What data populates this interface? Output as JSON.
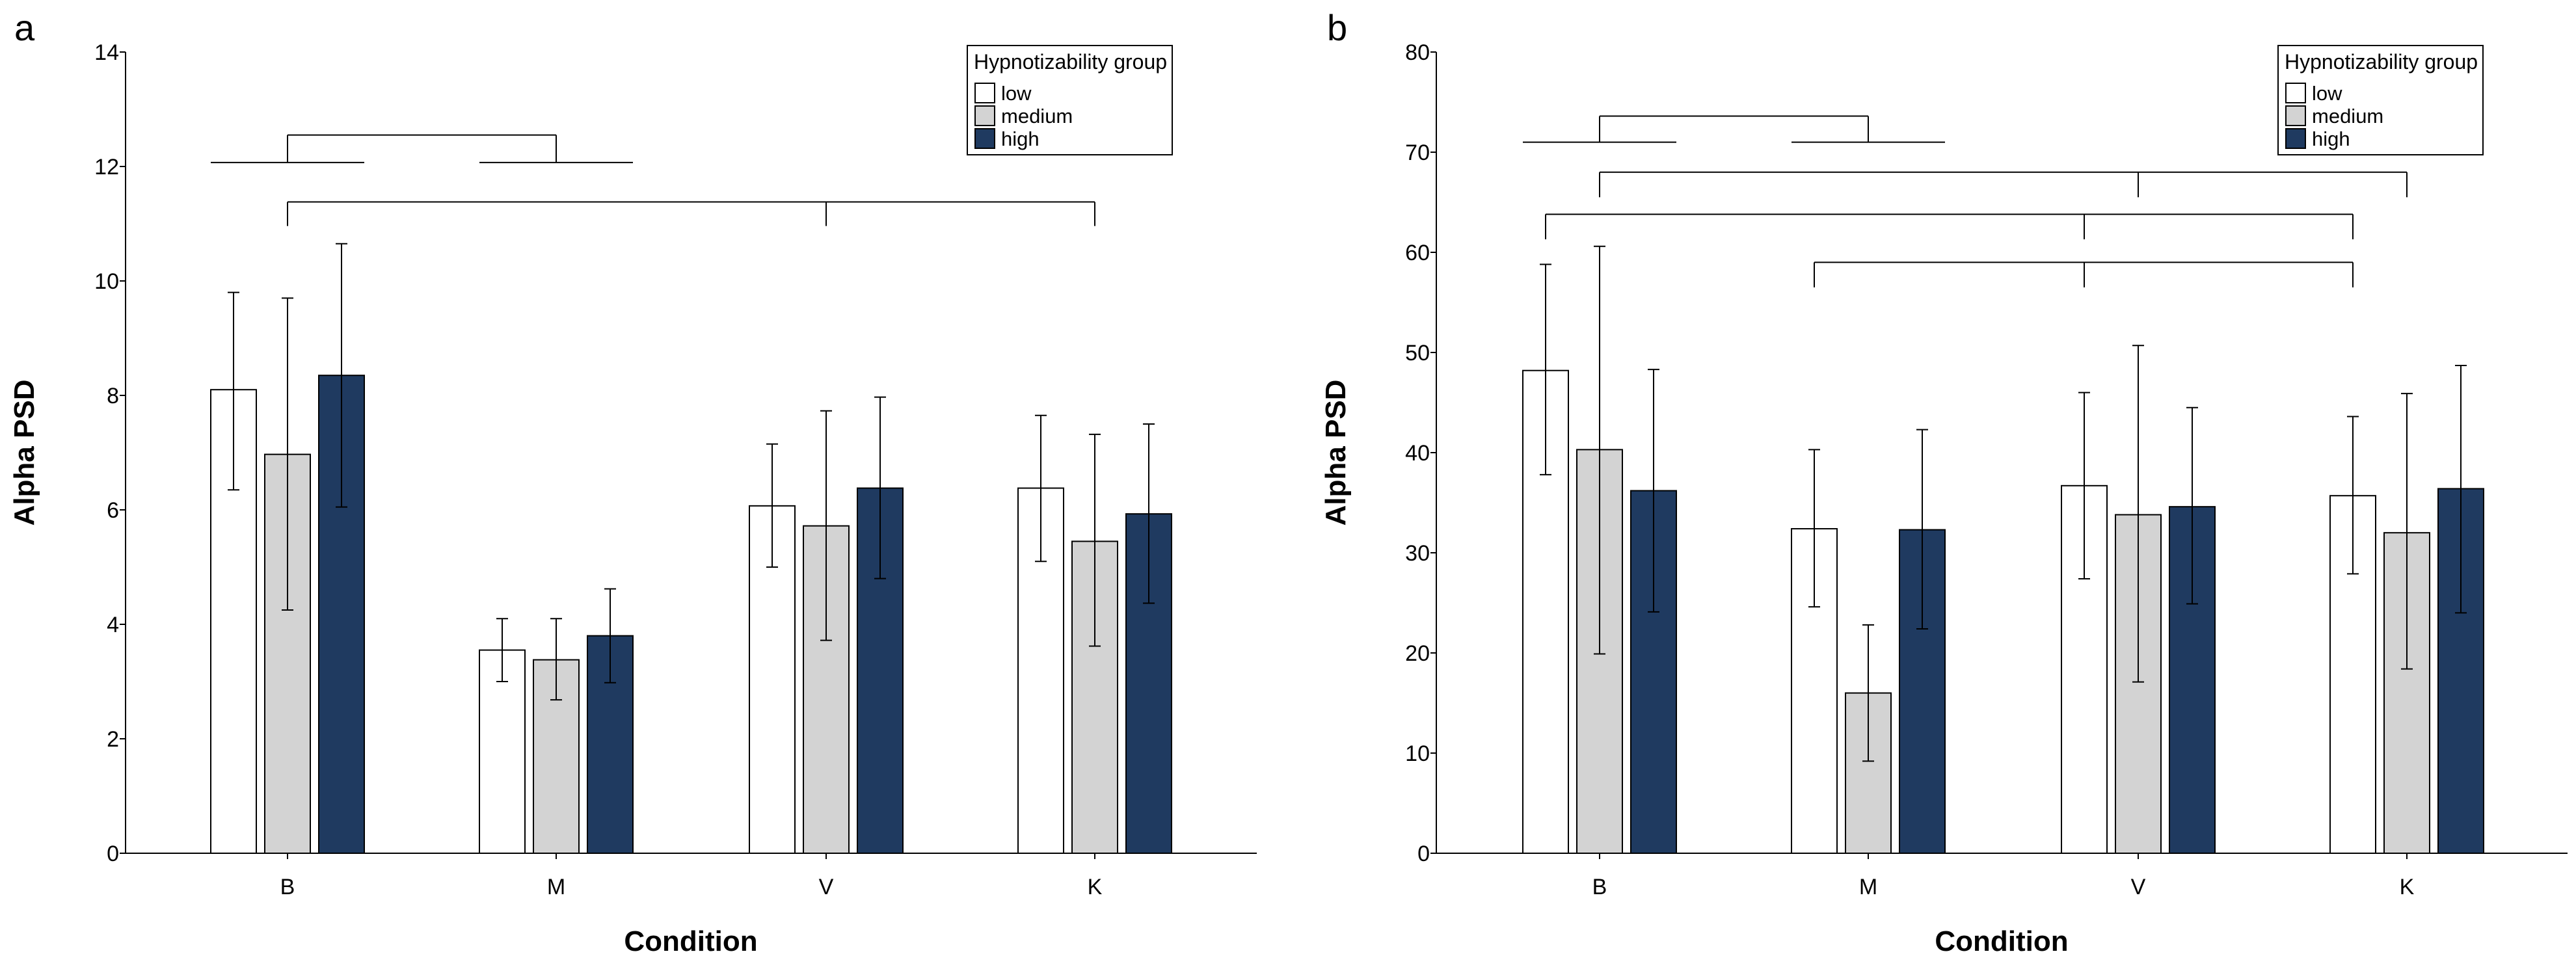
{
  "chart_data": [
    {
      "panel": "a",
      "type": "bar",
      "xlabel": "Condition",
      "ylabel": "Alpha PSD",
      "ylim": [
        0,
        14
      ],
      "yticks": [
        0,
        2,
        4,
        6,
        8,
        10,
        12,
        14
      ],
      "categories": [
        "B",
        "M",
        "V",
        "K"
      ],
      "legend": {
        "title": "Hypnotizability group",
        "position": "top-right"
      },
      "grid": false,
      "series": [
        {
          "name": "low",
          "color": "#ffffff",
          "values": [
            8.1,
            3.55,
            6.07,
            6.38
          ],
          "err_low": [
            6.35,
            3.0,
            5.0,
            5.1
          ],
          "err_high": [
            9.8,
            4.1,
            7.15,
            7.65
          ]
        },
        {
          "name": "medium",
          "color": "#d3d3d3",
          "values": [
            6.97,
            3.38,
            5.72,
            5.45
          ],
          "err_low": [
            4.25,
            2.68,
            3.72,
            3.62
          ],
          "err_high": [
            9.7,
            4.1,
            7.73,
            7.32
          ]
        },
        {
          "name": "high",
          "color": "#1f3a60",
          "values": [
            8.35,
            3.8,
            6.38,
            5.93
          ],
          "err_low": [
            6.05,
            2.98,
            4.8,
            4.37
          ],
          "err_high": [
            10.65,
            4.62,
            7.97,
            7.5
          ]
        }
      ],
      "brackets": [
        {
          "type": "nested",
          "y_outer": 12.55,
          "y_inner": 12.07,
          "parents": [
            {
              "center": {
                "cat": 0
              },
              "span": [
                {
                  "cat": 0,
                  "bar": 0
                },
                {
                  "cat": 0,
                  "bar": 2
                }
              ]
            },
            {
              "center": {
                "cat": 1
              },
              "span": [
                {
                  "cat": 1,
                  "bar": 0
                },
                {
                  "cat": 1,
                  "bar": 2
                }
              ]
            }
          ]
        },
        {
          "type": "simple",
          "y": 11.38,
          "depth": 0.42,
          "points": [
            {
              "cat": 0
            },
            {
              "cat": 2
            },
            {
              "cat": 3
            }
          ],
          "center": {
            "cat": 2
          }
        }
      ]
    },
    {
      "panel": "b",
      "type": "bar",
      "xlabel": "Condition",
      "ylabel": "Alpha PSD",
      "ylim": [
        0,
        80
      ],
      "yticks": [
        0,
        10,
        20,
        30,
        40,
        50,
        60,
        70,
        80
      ],
      "categories": [
        "B",
        "M",
        "V",
        "K"
      ],
      "legend": {
        "title": "Hypnotizability group",
        "position": "top-right"
      },
      "grid": false,
      "series": [
        {
          "name": "low",
          "color": "#ffffff",
          "values": [
            48.2,
            32.4,
            36.7,
            35.7
          ],
          "err_low": [
            37.8,
            24.6,
            27.4,
            27.9
          ],
          "err_high": [
            58.8,
            40.3,
            46.0,
            43.6
          ]
        },
        {
          "name": "medium",
          "color": "#d3d3d3",
          "values": [
            40.3,
            16.0,
            33.8,
            32.0
          ],
          "err_low": [
            19.9,
            9.2,
            17.1,
            18.4
          ],
          "err_high": [
            60.6,
            22.8,
            50.7,
            45.9
          ]
        },
        {
          "name": "high",
          "color": "#1f3a60",
          "values": [
            36.2,
            32.3,
            34.6,
            36.4
          ],
          "err_low": [
            24.1,
            22.4,
            24.9,
            24.0
          ],
          "err_high": [
            48.3,
            42.3,
            44.5,
            48.7
          ]
        }
      ],
      "brackets": [
        {
          "type": "nested",
          "y_outer": 73.6,
          "y_inner": 71.0,
          "parents": [
            {
              "center": {
                "cat": 0
              },
              "span": [
                {
                  "cat": 0,
                  "bar": 0
                },
                {
                  "cat": 0,
                  "bar": 2
                }
              ]
            },
            {
              "center": {
                "cat": 1
              },
              "span": [
                {
                  "cat": 1,
                  "bar": 0
                },
                {
                  "cat": 1,
                  "bar": 2
                }
              ]
            }
          ]
        },
        {
          "type": "simple",
          "y": 68.0,
          "depth": 2.5,
          "points": [
            {
              "cat": 0
            },
            {
              "cat": 2
            },
            {
              "cat": 3
            }
          ],
          "center": {
            "cat": 2
          }
        },
        {
          "type": "simple",
          "y": 63.8,
          "depth": 2.5,
          "points": [
            {
              "cat": 0,
              "bar": 0
            },
            {
              "cat": 2,
              "bar": 0
            },
            {
              "cat": 3,
              "bar": 0
            }
          ],
          "center": {
            "cat": 2,
            "bar": 0
          }
        },
        {
          "type": "simple",
          "y": 59.0,
          "depth": 2.5,
          "points": [
            {
              "cat": 1,
              "bar": 0
            },
            {
              "cat": 2,
              "bar": 0
            },
            {
              "cat": 3,
              "bar": 0
            }
          ],
          "center": {
            "cat": 2,
            "bar": 0
          }
        }
      ]
    }
  ]
}
